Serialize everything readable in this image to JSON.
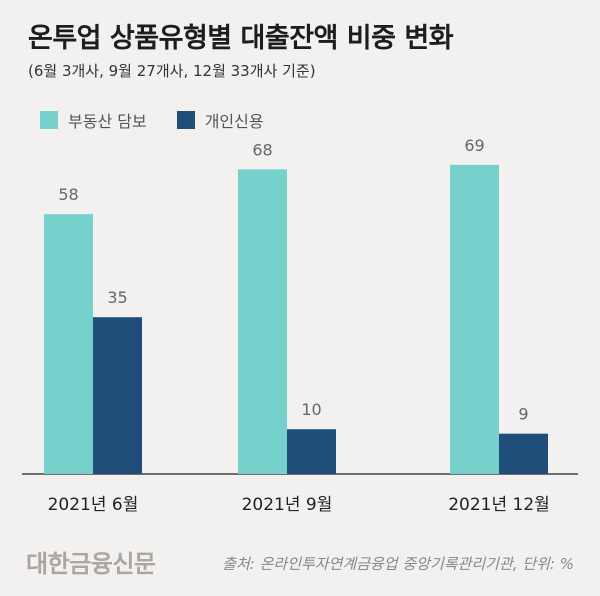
{
  "title": "온투업 상품유형별 대출잔액 비중 변화",
  "subtitle": "(6월 3개사, 9월 27개사, 12월 33개사 기준)",
  "colors": {
    "series1": "#76d0cb",
    "series2": "#1e4e79",
    "axis": "#444444",
    "label": "#666666"
  },
  "chart_data": {
    "type": "bar",
    "categories": [
      "2021년 6월",
      "2021년 9월",
      "2021년 12월"
    ],
    "series": [
      {
        "name": "부동산 담보",
        "values": [
          58,
          68,
          69
        ]
      },
      {
        "name": "개인신용",
        "values": [
          35,
          10,
          9
        ]
      }
    ],
    "ylim": [
      0,
      80
    ],
    "grid": false,
    "legend": "top-left"
  },
  "footer": {
    "logo": "대한금융신문",
    "source": "출처: 온라인투자연계금융업 중앙기록관리기관, 단위: %"
  }
}
